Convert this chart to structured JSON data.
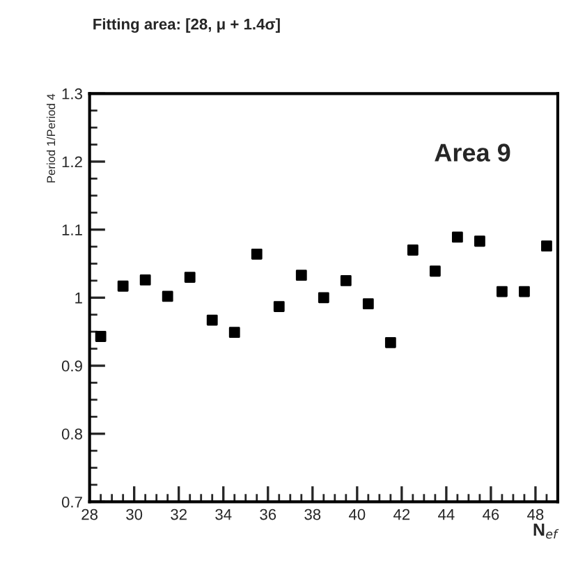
{
  "chart_data": {
    "type": "scatter",
    "title": "Fitting area: [28, μ + 1.4σ]",
    "xlabel": "N$_{ef}$",
    "ylabel": "Period 1/Period 4",
    "annotations": [
      "Area 9"
    ],
    "x": [
      28.5,
      29.5,
      30.5,
      31.5,
      32.5,
      33.5,
      34.5,
      35.5,
      36.5,
      37.5,
      38.5,
      39.5,
      40.5,
      41.5,
      42.5,
      43.5,
      44.5,
      45.5,
      46.5,
      47.5,
      48.5
    ],
    "series": [
      {
        "color": "#000000",
        "values": [
          0.943,
          1.017,
          1.026,
          1.002,
          1.03,
          0.967,
          0.949,
          1.064,
          0.987,
          1.033,
          1.0,
          1.025,
          0.991,
          0.934,
          1.07,
          1.039,
          1.089,
          1.083,
          1.009,
          1.009,
          1.076
        ]
      }
    ],
    "xlim": [
      28,
      49
    ],
    "xticks": [
      28,
      30,
      32,
      34,
      36,
      38,
      40,
      42,
      44,
      46,
      48
    ],
    "ylim": [
      0.7,
      1.3
    ],
    "yticks": [
      0.7,
      0.8,
      0.9,
      {
        "value": 1,
        "label": "1"
      },
      1.1,
      1.2,
      1.3
    ],
    "marker": "square",
    "grid": false,
    "legend": false
  }
}
